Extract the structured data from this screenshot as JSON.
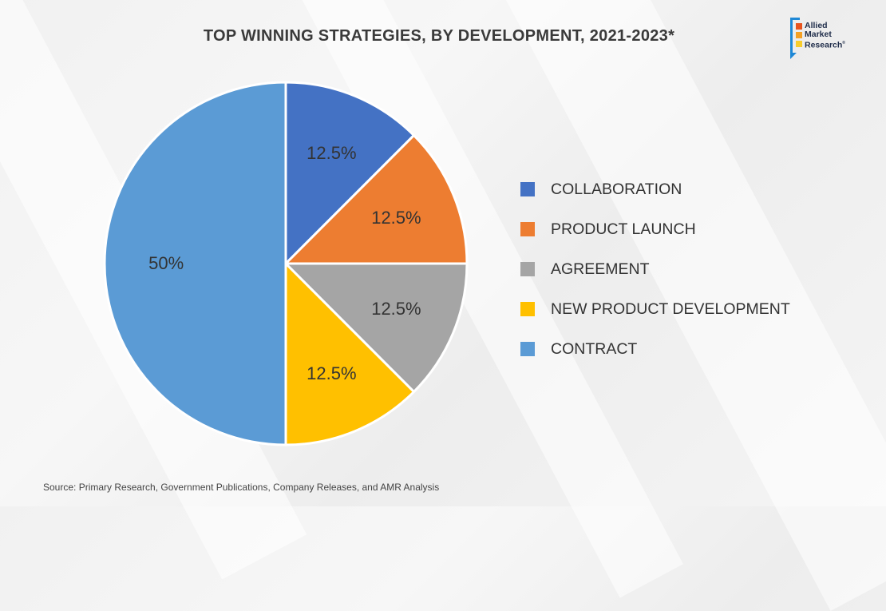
{
  "page": {
    "title": "TOP WINNING STRATEGIES, BY DEVELOPMENT, 2021-2023*",
    "source": "Source: Primary Research, Government Publications, Company Releases, and AMR Analysis"
  },
  "logo": {
    "line1": "Allied",
    "line2": "Market",
    "line3": "Research",
    "colors": [
      "#e8541e",
      "#f4a125",
      "#f7cd2c",
      "#1e88d6"
    ]
  },
  "chart_data": {
    "type": "pie",
    "title": "TOP WINNING STRATEGIES, BY DEVELOPMENT, 2021-2023*",
    "legend_position": "right",
    "slices": [
      {
        "name": "COLLABORATION",
        "value": 12.5,
        "label": "12.5%",
        "color": "#4472c4"
      },
      {
        "name": "PRODUCT LAUNCH",
        "value": 12.5,
        "label": "12.5%",
        "color": "#ed7d31"
      },
      {
        "name": "AGREEMENT",
        "value": 12.5,
        "label": "12.5%",
        "color": "#a5a5a5"
      },
      {
        "name": "NEW PRODUCT DEVELOPMENT",
        "value": 12.5,
        "label": "12.5%",
        "color": "#ffc000"
      },
      {
        "name": "CONTRACT",
        "value": 50,
        "label": "50%",
        "color": "#5b9bd5"
      }
    ]
  }
}
